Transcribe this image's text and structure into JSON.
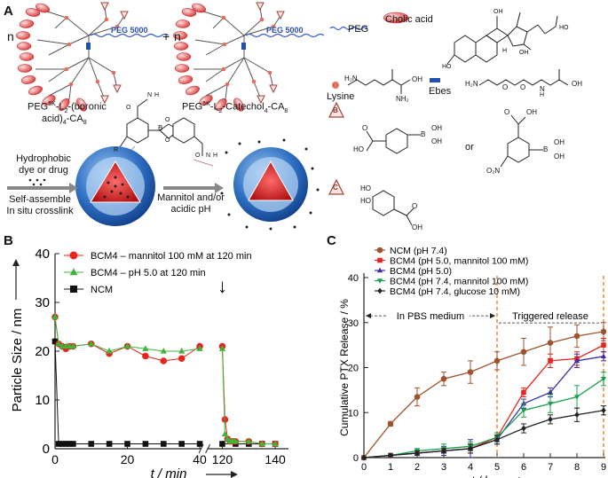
{
  "panels": {
    "a": "A",
    "b": "B",
    "c": "C"
  },
  "scheme": {
    "n1": "n",
    "n2": "n",
    "plus": "+",
    "peg_tag": "PEG 5000",
    "mol1_line1_pre": "PEG",
    "mol1_line1_sup": "5K",
    "mol1_line1_post": "-L",
    "mol1_line1_sub": "2",
    "mol1_line1_end": "-(boronic",
    "mol1_line2_pre": "acid)",
    "mol1_line2_sub1": "4",
    "mol1_line2_mid": "-CA",
    "mol1_line2_sub2": "8",
    "mol2_pre": "PEG",
    "mol2_sup": "5K",
    "mol2_mid": "-L",
    "mol2_sub1": "2",
    "mol2_mid2": "-Catechol",
    "mol2_sub2": "4",
    "mol2_mid3": "-CA",
    "mol2_sub3": "8",
    "legend_peg": "PEG",
    "legend_cholic": "Cholic acid",
    "legend_lysine": "Lysine",
    "legend_ebes": "Ebes",
    "legend_b": "B",
    "legend_c": "C",
    "or": "or",
    "hydrophobic_line1": "Hydrophobic",
    "hydrophobic_line2": "dye or drug",
    "self_assemble": "Self-assemble",
    "crosslink": "In situ crosslink",
    "mannitol_line1": "Mannitol and/or",
    "mannitol_line2": "acidic pH",
    "chem": {
      "lys_h2n": "H₂N",
      "lys_nh2": "NH₂",
      "lys_oh": "OH",
      "ebes_h2n": "H₂N",
      "ebes_o1": "O",
      "ebes_o2": "O",
      "ebes_h": "H",
      "ebes_n": "N",
      "ebes_oh": "OH",
      "cholic_ho1": "HO",
      "cholic_ho2": "HO",
      "cholic_oh1": "OH",
      "cholic_oh2": "OH",
      "cholic_h": "H",
      "b1_ho": "HO",
      "b1_o": "O",
      "b1_b": "B",
      "b1_oh1": "OH",
      "b1_oh2": "OH",
      "b2_oh": "OH",
      "b2_o": "O",
      "b2_o2n": "O₂N",
      "b2_b": "B",
      "b2_oh1": "OH",
      "b2_oh2": "OH",
      "c_ho1": "HO",
      "c_ho2": "HO",
      "c_o": "O",
      "c_oh": "OH",
      "mid_b": "B",
      "mid_o1": "O",
      "mid_o2": "O",
      "mid_o3": "O",
      "mid_o4": "O",
      "mid_n1": "N",
      "mid_n2": "N",
      "mid_h1": "H",
      "mid_h2": "H",
      "mid_r": "R"
    }
  },
  "chart_data": [
    {
      "panel": "B",
      "type": "scatter",
      "xlabel": "t / min",
      "ylabel": "Particle Size / nm",
      "xlim": [
        0,
        145
      ],
      "ylim": [
        0,
        40
      ],
      "axis_break": [
        40,
        115
      ],
      "xticks": [
        "0",
        "20",
        "40",
        "120",
        "140"
      ],
      "yticks": [
        "0",
        "10",
        "20",
        "30",
        "40"
      ],
      "xtick_values": [
        0,
        20,
        40,
        120,
        140
      ],
      "ytick_values": [
        0,
        10,
        20,
        30,
        40
      ],
      "series": [
        {
          "name": "BCM4 – mannitol 100 mM at 120 min",
          "color": "#e8241c",
          "marker": "circle",
          "x": [
            0,
            1,
            2,
            3,
            4,
            5,
            10,
            15,
            20,
            25,
            30,
            35,
            40,
            120,
            121,
            122,
            123,
            124,
            125,
            130,
            135,
            140
          ],
          "y": [
            27,
            21.5,
            21,
            20.5,
            21,
            21,
            21.5,
            19.5,
            21,
            19,
            18,
            18.5,
            21,
            21,
            6,
            2,
            1.5,
            1.5,
            1.5,
            1.5,
            1,
            1
          ]
        },
        {
          "name": "BCM4 – pH 5.0 at 120 min",
          "color": "#3db53a",
          "marker": "triangle",
          "x": [
            0,
            1,
            2,
            3,
            4,
            5,
            10,
            15,
            20,
            25,
            30,
            35,
            40,
            120,
            121,
            122,
            123,
            124,
            125,
            130,
            135,
            140
          ],
          "y": [
            27,
            21.5,
            21,
            21,
            21,
            21,
            21.5,
            20,
            21,
            20.5,
            20,
            20,
            20.5,
            20.5,
            3,
            2,
            1.5,
            1.5,
            1.5,
            1.5,
            1,
            1
          ]
        },
        {
          "name": "NCM",
          "color": "#111111",
          "marker": "square",
          "x": [
            0,
            1,
            2,
            3,
            4,
            5,
            10,
            15,
            20,
            25,
            30,
            35,
            40,
            120,
            125,
            130,
            135,
            140
          ],
          "y": [
            22,
            1,
            1,
            1,
            1,
            1,
            1,
            1,
            1,
            1,
            1,
            1,
            1,
            1,
            1,
            1,
            1,
            1
          ]
        }
      ],
      "annotation": "↓"
    },
    {
      "panel": "C",
      "type": "line",
      "xlabel": "t / h",
      "ylabel": "Cumulative PTX Release / %",
      "xlim": [
        0,
        9
      ],
      "ylim": [
        0,
        40
      ],
      "xticks": [
        "0",
        "1",
        "2",
        "3",
        "4",
        "5",
        "6",
        "7",
        "8",
        "9"
      ],
      "yticks": [
        "0",
        "10",
        "20",
        "30",
        "40"
      ],
      "xtick_values": [
        0,
        1,
        2,
        3,
        4,
        5,
        6,
        7,
        8,
        9
      ],
      "ytick_values": [
        0,
        10,
        20,
        30,
        40
      ],
      "x": [
        0,
        1,
        2,
        3,
        4,
        5,
        6,
        7,
        8,
        9
      ],
      "series": [
        {
          "name": "NCM (pH 7.4)",
          "color": "#a0522d",
          "marker": "circle",
          "values": [
            0,
            7.5,
            13.5,
            17.5,
            19,
            21.5,
            23.5,
            25.5,
            27,
            28
          ],
          "errors": [
            0,
            0.5,
            2,
            1.5,
            2.5,
            2,
            3,
            3.5,
            2.5,
            2
          ]
        },
        {
          "name": "BCM4 (pH 5.0, mannitol 100 mM)",
          "color": "#e8241c",
          "marker": "square",
          "values": [
            0,
            0.5,
            1,
            1.5,
            2,
            4.5,
            14.5,
            21.5,
            22,
            25
          ],
          "errors": [
            0,
            0.3,
            0.5,
            0.5,
            1,
            1,
            1,
            1.5,
            1.5,
            1.5
          ]
        },
        {
          "name": "BCM4 (pH 5.0)",
          "color": "#3a2fa8",
          "marker": "triangle",
          "values": [
            0,
            0.5,
            1,
            1.5,
            2,
            4,
            12,
            14.5,
            21.5,
            22.5
          ],
          "errors": [
            0,
            0.3,
            0.5,
            1,
            2,
            1,
            1,
            1,
            1.5,
            1
          ]
        },
        {
          "name": "BCM4 (pH 7.4, mannitol 100 mM)",
          "color": "#16a34a",
          "marker": "triangle-down",
          "values": [
            0,
            0.5,
            1.5,
            2,
            2.5,
            4.5,
            10.5,
            12,
            13.5,
            17.5
          ],
          "errors": [
            0,
            0.3,
            0.5,
            1,
            1,
            1,
            1.5,
            2,
            2.5,
            1.5
          ]
        },
        {
          "name": "BCM4 (pH 7.4, glucose 10 mM)",
          "color": "#222222",
          "marker": "diamond",
          "values": [
            0,
            0.5,
            1,
            1.5,
            2,
            4,
            6.5,
            8.5,
            9.5,
            10.5
          ],
          "errors": [
            0,
            0.3,
            0.5,
            0.5,
            1,
            1,
            1,
            1,
            1.5,
            1
          ]
        }
      ],
      "annotations": [
        "In PBS medium",
        "Triggered release"
      ],
      "vlines": [
        5,
        9
      ]
    }
  ]
}
